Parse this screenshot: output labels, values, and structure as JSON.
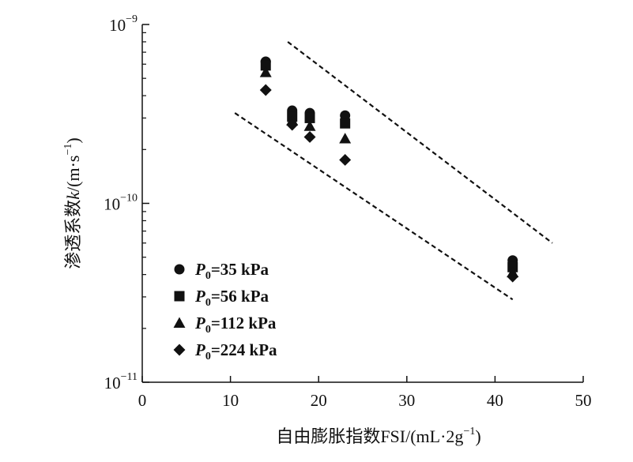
{
  "chart_data": {
    "type": "scatter",
    "title": "",
    "xlabel": "自由膨胀指数FSI/(mL·2g",
    "xlabel_sup": "−1",
    "xlabel_close": ")",
    "ylabel_prefix": "渗透系数",
    "ylabel_k": "k",
    "ylabel_unit": "/(m·s",
    "ylabel_sup": "−1",
    "ylabel_close": ")",
    "x_scale": "linear",
    "y_scale": "log",
    "xlim": [
      0,
      50
    ],
    "ylim": [
      1e-11,
      1e-09
    ],
    "x_ticks": [
      0,
      10,
      20,
      30,
      40,
      50
    ],
    "x_tick_labels": [
      "0",
      "10",
      "20",
      "30",
      "40",
      "50"
    ],
    "y_ticks": [
      {
        "value": 1e-11,
        "base": "10",
        "exp": "−11"
      },
      {
        "value": 1e-10,
        "base": "10",
        "exp": "−10"
      },
      {
        "value": 1e-09,
        "base": "10",
        "exp": "−9"
      }
    ],
    "grid": false,
    "legend_position": "bottom-left",
    "series": [
      {
        "name_italic": "P",
        "name_sub": "0",
        "name_rest": "=35 kPa",
        "marker": "circle",
        "x": [
          14,
          17,
          19,
          23,
          42
        ],
        "y": [
          6.2e-10,
          3.3e-10,
          3.2e-10,
          3.1e-10,
          4.8e-11
        ]
      },
      {
        "name_italic": "P",
        "name_sub": "0",
        "name_rest": "=56 kPa",
        "marker": "square",
        "x": [
          14,
          17,
          19,
          23,
          42
        ],
        "y": [
          5.9e-10,
          3.05e-10,
          3e-10,
          2.8e-10,
          4.4e-11
        ]
      },
      {
        "name_italic": "P",
        "name_sub": "0",
        "name_rest": "=112 kPa",
        "marker": "triangle",
        "x": [
          14,
          17,
          19,
          23,
          42
        ],
        "y": [
          5.4e-10,
          2.9e-10,
          2.7e-10,
          2.3e-10,
          4.1e-11
        ]
      },
      {
        "name_italic": "P",
        "name_sub": "0",
        "name_rest": "=224 kPa",
        "marker": "diamond",
        "x": [
          14,
          17,
          19,
          23,
          42
        ],
        "y": [
          4.3e-10,
          2.75e-10,
          2.35e-10,
          1.75e-10,
          3.9e-11
        ]
      }
    ],
    "bounds": [
      {
        "style": "dashed",
        "x": [
          16.5,
          46.5
        ],
        "y": [
          8e-10,
          6e-11
        ]
      },
      {
        "style": "dashed",
        "x": [
          10.5,
          42.0
        ],
        "y": [
          3.2e-10,
          2.9e-11
        ]
      }
    ],
    "colors": {
      "marker": "#111111",
      "axis": "#111111"
    }
  }
}
